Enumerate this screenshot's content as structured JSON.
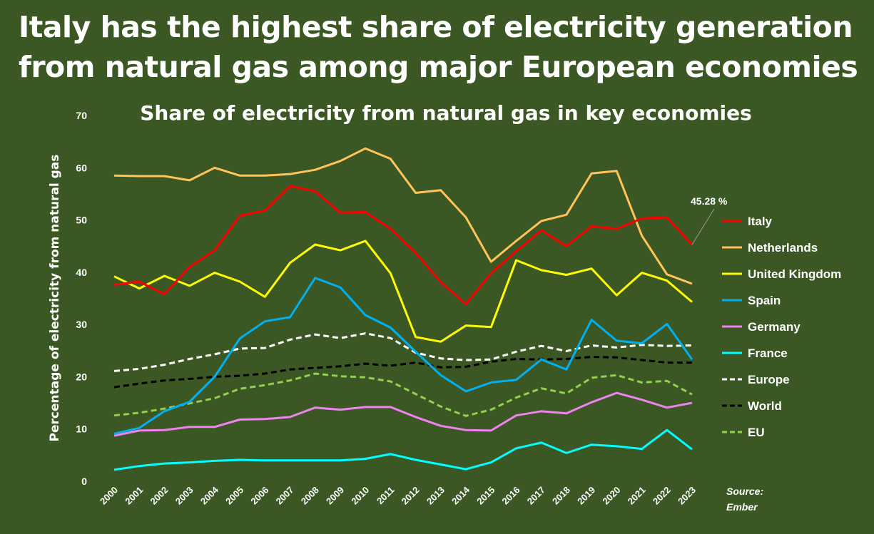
{
  "headline": "Italy has the highest share of electricity generation from natural gas among major European economies",
  "source": [
    "Source:",
    "Ember"
  ],
  "chart_data": {
    "type": "line",
    "title": "Share of electricity from natural gas in key economies",
    "xlabel": "",
    "ylabel": "Percentage of electricity from natural gas",
    "ylim": [
      0,
      70
    ],
    "yticks": [
      0,
      10,
      20,
      30,
      40,
      50,
      60,
      70
    ],
    "grid": false,
    "legend": "right",
    "x": [
      2000,
      2001,
      2002,
      2003,
      2004,
      2005,
      2006,
      2007,
      2008,
      2009,
      2010,
      2011,
      2012,
      2013,
      2014,
      2015,
      2016,
      2017,
      2018,
      2019,
      2020,
      2021,
      2022,
      2023
    ],
    "annotation": {
      "series": "Italy",
      "x": 2023,
      "text": "45.28 %"
    },
    "series": [
      {
        "name": "Italy",
        "color": "#ff0000",
        "dash": false,
        "values": [
          37.6,
          38.2,
          35.8,
          41,
          44.2,
          50.8,
          51.8,
          56.5,
          55.5,
          51.4,
          51.5,
          48.3,
          43.7,
          38.1,
          33.9,
          39.8,
          44,
          48,
          45,
          48.8,
          48.3,
          50.3,
          50.5,
          45.28
        ]
      },
      {
        "name": "Netherlands",
        "color": "#ffc35a",
        "dash": false,
        "values": [
          58.5,
          58.4,
          58.4,
          57.6,
          60,
          58.5,
          58.5,
          58.8,
          59.6,
          61.3,
          63.7,
          61.7,
          55.2,
          55.7,
          50.5,
          42,
          46,
          49.8,
          51,
          58.9,
          59.4,
          47,
          39.6,
          37.8
        ]
      },
      {
        "name": "United Kingdom",
        "color": "#ffff00",
        "dash": false,
        "values": [
          39.2,
          36.9,
          39.3,
          37.4,
          39.9,
          38.2,
          35.3,
          41.8,
          45.3,
          44.2,
          46,
          39.8,
          27.6,
          26.7,
          29.8,
          29.5,
          42.3,
          40.4,
          39.5,
          40.7,
          35.6,
          39.9,
          38.4,
          34.3
        ]
      },
      {
        "name": "Spain",
        "color": "#00b0f0",
        "dash": false,
        "values": [
          9.1,
          10.2,
          13.4,
          15.2,
          20,
          27.3,
          30.6,
          31.4,
          38.9,
          37.1,
          31.8,
          29.4,
          24.8,
          20.3,
          17.2,
          18.9,
          19.4,
          23.3,
          21.4,
          30.9,
          26.9,
          26.4,
          30.1,
          23.3
        ]
      },
      {
        "name": "Germany",
        "color": "#ee82ee",
        "dash": false,
        "values": [
          8.7,
          9.7,
          9.8,
          10.4,
          10.4,
          11.8,
          11.9,
          12.3,
          14.1,
          13.7,
          14.2,
          14.2,
          12.3,
          10.6,
          9.8,
          9.7,
          12.6,
          13.4,
          13,
          15.1,
          16.9,
          15.6,
          14.1,
          15
        ]
      },
      {
        "name": "France",
        "color": "#00ffff",
        "dash": false,
        "values": [
          2.2,
          2.9,
          3.4,
          3.6,
          3.9,
          4.1,
          4,
          4,
          4,
          4,
          4.3,
          5.2,
          4.1,
          3.2,
          2.3,
          3.6,
          6.3,
          7.4,
          5.4,
          7,
          6.7,
          6.2,
          9.8,
          6.1
        ]
      },
      {
        "name": "Europe",
        "color": "#ffffff",
        "dash": true,
        "values": [
          21.1,
          21.5,
          22.3,
          23.4,
          24.3,
          25.4,
          25.5,
          27.1,
          28.1,
          27.4,
          28.3,
          27.4,
          24.6,
          23.5,
          23.2,
          23.3,
          24.8,
          25.9,
          24.9,
          26,
          25.6,
          26.1,
          25.9,
          26
        ]
      },
      {
        "name": "World",
        "color": "#000000",
        "dash": true,
        "values": [
          18,
          18.7,
          19.3,
          19.6,
          20,
          20.2,
          20.6,
          21.4,
          21.7,
          22,
          22.5,
          22.1,
          22.7,
          21.8,
          21.9,
          22.9,
          23.4,
          23.3,
          23.4,
          23.8,
          23.7,
          23.2,
          22.7,
          22.7
        ]
      },
      {
        "name": "EU",
        "color": "#92d050",
        "dash": true,
        "values": [
          12.6,
          13.1,
          13.9,
          14.9,
          15.9,
          17.7,
          18.4,
          19.3,
          20.6,
          20.1,
          19.9,
          19.1,
          16.7,
          14.3,
          12.5,
          13.7,
          16,
          17.8,
          16.8,
          19.8,
          20.3,
          18.9,
          19.2,
          16.6
        ]
      }
    ]
  }
}
